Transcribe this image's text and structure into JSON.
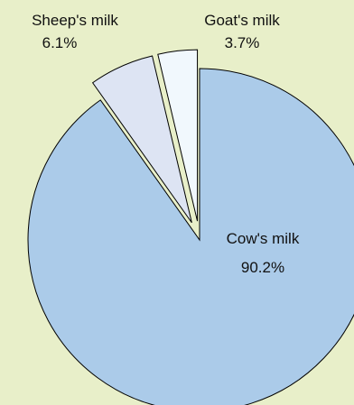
{
  "chart_data": {
    "type": "pie",
    "slices": [
      {
        "label": "Cow's milk",
        "value": 90.2,
        "display": "90.2%",
        "color": "#abcbe9"
      },
      {
        "label": "Sheep's milk",
        "value": 6.1,
        "display": "6.1%",
        "color": "#dde4f3"
      },
      {
        "label": "Goat's milk",
        "value": 3.7,
        "display": "3.7%",
        "color": "#f1f8fd"
      }
    ],
    "exploded": [
      "Sheep's milk",
      "Goat's milk"
    ],
    "legend": "none",
    "background": "#e8efc9",
    "border_color": "#000000"
  }
}
